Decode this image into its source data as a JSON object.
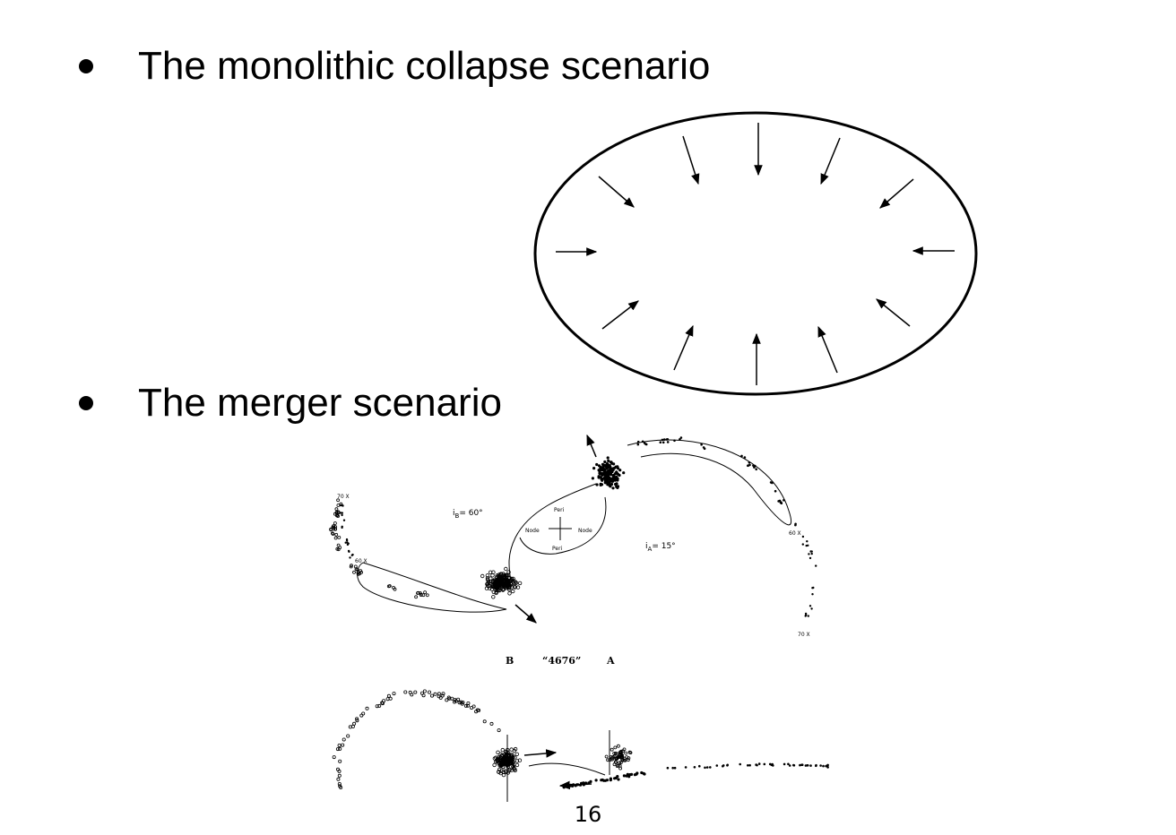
{
  "bullets": [
    {
      "text": "The monolithic collapse scenario"
    },
    {
      "text": "The merger scenario"
    }
  ],
  "merger_figure": {
    "label_b": "B",
    "label_name": "“4676”",
    "label_a": "A",
    "i_b": "i",
    "i_b_sub": "B",
    "i_b_value": "= 60°",
    "i_a": "i",
    "i_a_sub": "A",
    "i_a_value": "= 15°",
    "peri_top": "Peri",
    "peri_bottom": "Peri",
    "node_left": "Node",
    "node_right": "Node",
    "tick_70_left": "70 X",
    "tick_60_left": "60 X",
    "tick_60_right": "60 X",
    "tick_70_right": "70 X"
  },
  "page_number": "16"
}
